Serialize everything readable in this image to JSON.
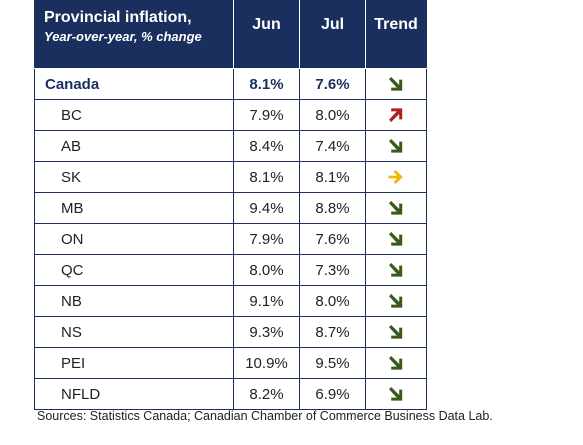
{
  "chart_data": {
    "type": "table",
    "title": "Provincial inflation,",
    "subtitle": "Year-over-year, % change",
    "columns": [
      "Jun",
      "Jul",
      "Trend"
    ],
    "rows": [
      {
        "region": "Canada",
        "jun": "8.1%",
        "jul": "7.6%",
        "trend": "down"
      },
      {
        "region": "BC",
        "jun": "7.9%",
        "jul": "8.0%",
        "trend": "up"
      },
      {
        "region": "AB",
        "jun": "8.4%",
        "jul": "7.4%",
        "trend": "down"
      },
      {
        "region": "SK",
        "jun": "8.1%",
        "jul": "8.1%",
        "trend": "flat"
      },
      {
        "region": "MB",
        "jun": "9.4%",
        "jul": "8.8%",
        "trend": "down"
      },
      {
        "region": "ON",
        "jun": "7.9%",
        "jul": "7.6%",
        "trend": "down"
      },
      {
        "region": "QC",
        "jun": "8.0%",
        "jul": "7.3%",
        "trend": "down"
      },
      {
        "region": "NB",
        "jun": "9.1%",
        "jul": "8.0%",
        "trend": "down"
      },
      {
        "region": "NS",
        "jun": "9.3%",
        "jul": "8.7%",
        "trend": "down"
      },
      {
        "region": "PEI",
        "jun": "10.9%",
        "jul": "9.5%",
        "trend": "down"
      },
      {
        "region": "NFLD",
        "jun": "8.2%",
        "jul": "6.9%",
        "trend": "down"
      }
    ]
  },
  "trend_icons": {
    "down": {
      "icon": "arrow-down-right-icon",
      "color": "#3a5a1c"
    },
    "up": {
      "icon": "arrow-up-right-icon",
      "color": "#b0201e"
    },
    "flat": {
      "icon": "arrow-right-icon",
      "color": "#f2b705"
    }
  },
  "colors": {
    "header_bg": "#1b2f5e",
    "border": "#1b2f5e"
  },
  "source": "Sources: Statistics Canada; Canadian Chamber of Commerce Business Data Lab."
}
